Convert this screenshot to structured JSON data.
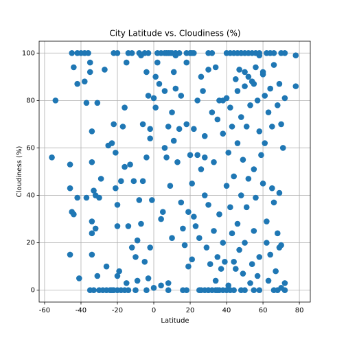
{
  "chart_data": {
    "type": "scatter",
    "title": "City Latitude vs. Cloudiness (%)",
    "x_label": "Latitude",
    "y_label": "Cloudiness (%)",
    "color": "#1f77b4",
    "grid": true,
    "xlim": [
      -63,
      86
    ],
    "ylim": [
      -5,
      105
    ],
    "xticks": [
      -60,
      -40,
      -20,
      0,
      20,
      40,
      60,
      80
    ],
    "yticks": [
      0,
      20,
      40,
      60,
      80,
      100
    ],
    "x": [
      -45,
      -42,
      -40,
      -38,
      -36,
      -22,
      -20,
      -14,
      -12,
      -8,
      -5,
      -3,
      2,
      4,
      6,
      8,
      10,
      12,
      18,
      20,
      22,
      30,
      32,
      42,
      44,
      46,
      48,
      50,
      52,
      54,
      56,
      58,
      64,
      66,
      70,
      72,
      78,
      -35,
      -33,
      -30,
      -28,
      -26,
      -24,
      -22,
      -18,
      -16,
      -14,
      -4,
      0,
      8,
      16,
      18,
      26,
      28,
      30,
      32,
      34,
      36,
      38,
      40,
      42,
      44,
      48,
      50,
      55,
      58,
      66,
      68,
      70,
      72,
      -54,
      -56,
      -46,
      -46,
      -45,
      -44,
      -46,
      -44,
      -42,
      -41,
      -42,
      -38,
      -37,
      -37,
      -35,
      -35,
      -34,
      -34,
      -34,
      -34,
      -34,
      -33,
      -32,
      -32,
      -31,
      -31,
      -30,
      -29,
      -27,
      -26,
      -25,
      -23,
      -22,
      -21,
      -21,
      -20,
      -20,
      -19,
      -18,
      -17,
      -16,
      -16,
      -15,
      -14,
      -13,
      -12,
      -11,
      -10,
      -9,
      -9,
      -8,
      -7,
      -7,
      -6,
      -6,
      -5,
      -4,
      -4,
      -3,
      -2,
      -2,
      -1,
      0,
      1,
      1,
      3,
      4,
      4,
      5,
      6,
      6,
      7,
      8,
      9,
      10,
      10,
      11,
      12,
      13,
      14,
      15,
      15,
      16,
      17,
      18,
      18,
      19,
      19,
      20,
      21,
      21,
      22,
      22,
      23,
      24,
      24,
      25,
      26,
      26,
      27,
      28,
      28,
      29,
      30,
      30,
      31,
      32,
      33,
      33,
      34,
      34,
      35,
      35,
      36,
      36,
      37,
      38,
      38,
      39,
      40,
      40,
      41,
      41,
      42,
      42,
      43,
      43,
      44,
      44,
      45,
      45,
      46,
      46,
      46,
      47,
      47,
      48,
      48,
      49,
      49,
      50,
      50,
      51,
      51,
      52,
      52,
      53,
      53,
      54,
      54,
      55,
      55,
      56,
      56,
      57,
      57,
      58,
      58,
      59,
      60,
      60,
      61,
      61,
      62,
      62,
      63,
      63,
      64,
      64,
      65,
      65,
      66,
      66,
      67,
      68,
      68,
      69,
      70,
      70,
      71,
      72,
      72,
      78,
      69,
      69,
      62,
      60,
      58,
      55,
      50,
      48,
      40,
      38,
      35,
      30,
      28,
      25,
      12,
      11,
      8,
      2,
      -23,
      -20,
      -10,
      -2,
      -20,
      -15,
      -3,
      7,
      9,
      14,
      20,
      21
    ],
    "values": [
      100,
      100,
      100,
      100,
      100,
      100,
      100,
      100,
      100,
      100,
      100,
      100,
      100,
      100,
      100,
      100,
      100,
      100,
      100,
      100,
      100,
      100,
      100,
      100,
      100,
      100,
      100,
      100,
      100,
      100,
      100,
      100,
      100,
      100,
      100,
      100,
      99,
      0,
      0,
      0,
      0,
      0,
      0,
      0,
      0,
      0,
      0,
      0,
      1,
      0,
      0,
      0,
      0,
      0,
      0,
      0,
      0,
      0,
      0,
      0,
      0,
      0,
      0,
      0,
      0,
      0,
      0,
      0,
      1,
      0,
      80,
      56,
      53,
      43,
      33,
      32,
      15,
      94,
      87,
      5,
      39,
      88,
      79,
      39,
      96,
      92,
      24,
      29,
      54,
      67,
      15,
      42,
      40,
      26,
      79,
      6,
      39,
      47,
      93,
      10,
      61,
      62,
      70,
      58,
      43,
      27,
      36,
      8,
      46,
      69,
      52,
      77,
      96,
      27,
      53,
      18,
      46,
      14,
      21,
      4,
      38,
      28,
      99,
      46,
      70,
      12,
      56,
      92,
      82,
      68,
      64,
      38,
      81,
      90,
      77,
      87,
      30,
      2,
      33,
      84,
      60,
      56,
      69,
      44,
      75,
      22,
      92,
      85,
      54,
      68,
      37,
      82,
      26,
      19,
      70,
      96,
      10,
      33,
      57,
      45,
      13,
      31,
      68,
      27,
      80,
      57,
      22,
      90,
      51,
      84,
      40,
      65,
      18,
      36,
      93,
      11,
      75,
      25,
      54,
      94,
      4,
      72,
      14,
      80,
      32,
      9,
      66,
      20,
      12,
      44,
      81,
      58,
      2,
      77,
      35,
      24,
      69,
      48,
      12,
      89,
      9,
      84,
      62,
      28,
      93,
      17,
      73,
      40,
      55,
      7,
      86,
      20,
      35,
      69,
      90,
      47,
      78,
      3,
      88,
      11,
      51,
      25,
      94,
      39,
      80,
      6,
      67,
      14,
      57,
      91,
      45,
      82,
      62,
      29,
      20,
      75,
      4,
      85,
      15,
      43,
      69,
      37,
      95,
      8,
      78,
      24,
      87,
      70,
      19,
      60,
      81,
      3,
      86,
      41,
      18,
      100,
      92,
      99,
      87,
      92,
      100,
      100,
      80,
      0,
      0,
      56,
      0,
      99,
      63,
      3,
      96,
      0,
      0,
      0,
      18,
      6,
      3,
      5,
      100,
      100,
      100,
      100,
      100
    ]
  }
}
